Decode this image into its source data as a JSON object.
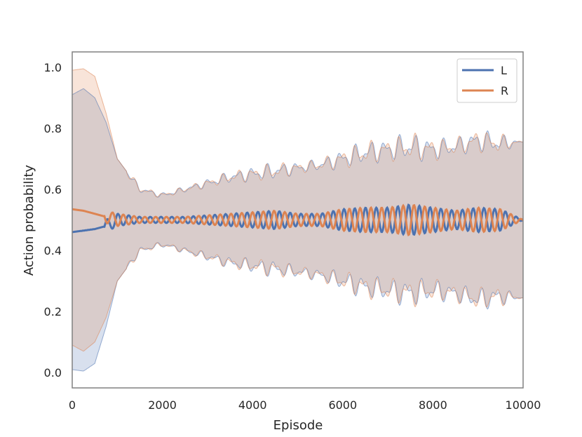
{
  "chart_data": {
    "type": "line",
    "xlabel": "Episode",
    "ylabel": "Action probability",
    "xlim": [
      0,
      10000
    ],
    "ylim": [
      -0.05,
      1.05
    ],
    "x_ticks": [
      0,
      2000,
      4000,
      6000,
      8000,
      10000
    ],
    "y_ticks": [
      0.0,
      0.2,
      0.4,
      0.6,
      0.8,
      1.0
    ],
    "x_tick_labels": [
      "0",
      "2000",
      "4000",
      "6000",
      "8000",
      "10000"
    ],
    "y_tick_labels": [
      "0.0",
      "0.2",
      "0.4",
      "0.6",
      "0.8",
      "1.0"
    ],
    "grid": false,
    "legend_position": "top-right",
    "colors": {
      "L": "#4c72b0",
      "R": "#dd8452",
      "overlap": "#d8cccc",
      "frame": "#808080"
    },
    "series": [
      {
        "name": "L",
        "x": [
          0,
          250,
          500,
          750,
          1000,
          1500,
          2000,
          2500,
          3000,
          3500,
          4000,
          4500,
          5000,
          5500,
          6000,
          6500,
          7000,
          7500,
          8000,
          8500,
          9000,
          9500,
          10000
        ],
        "mean": [
          0.46,
          0.465,
          0.47,
          0.48,
          0.5,
          0.5,
          0.5,
          0.5,
          0.5,
          0.5,
          0.5,
          0.5,
          0.5,
          0.5,
          0.5,
          0.5,
          0.5,
          0.5,
          0.5,
          0.5,
          0.5,
          0.5,
          0.5
        ],
        "mean_oscillation": [
          0.0,
          0.0,
          0.0,
          0.02,
          0.02,
          0.01,
          0.01,
          0.01,
          0.015,
          0.02,
          0.025,
          0.03,
          0.02,
          0.02,
          0.035,
          0.04,
          0.04,
          0.05,
          0.04,
          0.03,
          0.04,
          0.035,
          0.0
        ],
        "upper": [
          0.91,
          0.93,
          0.9,
          0.82,
          0.7,
          0.6,
          0.58,
          0.6,
          0.62,
          0.64,
          0.65,
          0.66,
          0.67,
          0.68,
          0.7,
          0.72,
          0.73,
          0.74,
          0.73,
          0.74,
          0.76,
          0.75,
          0.755
        ],
        "lower": [
          0.01,
          0.005,
          0.03,
          0.15,
          0.3,
          0.4,
          0.42,
          0.4,
          0.38,
          0.36,
          0.35,
          0.34,
          0.33,
          0.32,
          0.3,
          0.28,
          0.27,
          0.26,
          0.27,
          0.26,
          0.24,
          0.25,
          0.245
        ]
      },
      {
        "name": "R",
        "x": [
          0,
          250,
          500,
          750,
          1000,
          1500,
          2000,
          2500,
          3000,
          3500,
          4000,
          4500,
          5000,
          5500,
          6000,
          6500,
          7000,
          7500,
          8000,
          8500,
          9000,
          9500,
          10000
        ],
        "mean": [
          0.535,
          0.53,
          0.52,
          0.51,
          0.5,
          0.5,
          0.5,
          0.5,
          0.5,
          0.5,
          0.5,
          0.5,
          0.5,
          0.5,
          0.5,
          0.5,
          0.5,
          0.5,
          0.5,
          0.5,
          0.5,
          0.5,
          0.5
        ],
        "mean_oscillation": [
          0.0,
          0.0,
          0.0,
          0.02,
          0.02,
          0.01,
          0.01,
          0.01,
          0.015,
          0.02,
          0.025,
          0.03,
          0.02,
          0.02,
          0.035,
          0.04,
          0.04,
          0.05,
          0.04,
          0.03,
          0.04,
          0.035,
          0.0
        ],
        "upper": [
          0.99,
          0.995,
          0.97,
          0.85,
          0.7,
          0.6,
          0.58,
          0.6,
          0.62,
          0.64,
          0.65,
          0.66,
          0.67,
          0.68,
          0.7,
          0.72,
          0.73,
          0.74,
          0.73,
          0.74,
          0.76,
          0.75,
          0.755
        ],
        "lower": [
          0.09,
          0.07,
          0.1,
          0.18,
          0.3,
          0.4,
          0.42,
          0.4,
          0.38,
          0.36,
          0.35,
          0.34,
          0.33,
          0.32,
          0.3,
          0.28,
          0.27,
          0.26,
          0.27,
          0.26,
          0.24,
          0.25,
          0.245
        ]
      }
    ]
  }
}
